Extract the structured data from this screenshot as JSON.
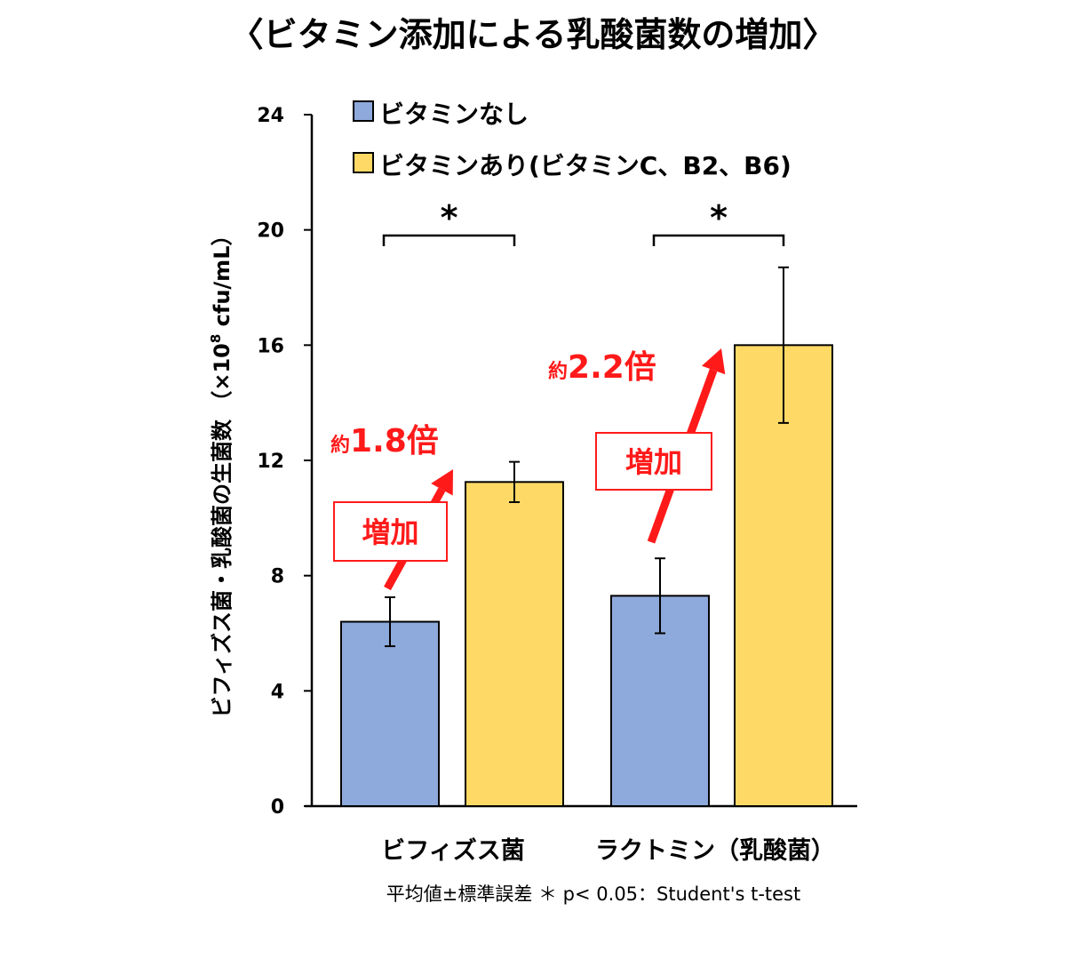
{
  "chart_data": {
    "type": "bar",
    "title": "〈ビタミン添加による乳酸菌数の増加〉",
    "ylabel": "ビフィズス菌・乳酸菌の生菌数 （×10",
    "ylabel_sup": "8",
    "ylabel_unit": "cfu/mL）",
    "ylim": [
      0,
      24
    ],
    "yticks": [
      0,
      4,
      8,
      12,
      16,
      20,
      24
    ],
    "grid": false,
    "legend_position": "top-left",
    "categories": [
      "ビフィズス菌",
      "ラクトミン（乳酸菌）"
    ],
    "series": [
      {
        "name": "ビタミンなし",
        "color": "#8eaadc",
        "values": [
          6.4,
          7.3
        ],
        "errors": [
          0.85,
          1.3
        ]
      },
      {
        "name": "ビタミンあり(ビタミンC、B2、B6)",
        "color": "#ffd966",
        "values": [
          11.25,
          16.0
        ],
        "errors": [
          0.7,
          2.7
        ]
      }
    ],
    "significance": [
      "*",
      "*"
    ],
    "annotations": [
      {
        "label": "増加",
        "prefix": "約",
        "ratio": "1.8倍"
      },
      {
        "label": "増加",
        "prefix": "約",
        "ratio": "2.2倍"
      }
    ],
    "footnote": "平均値±標準誤差 ＊ p< 0.05：Student's t-test",
    "accent_color": "#ff1a1a"
  }
}
